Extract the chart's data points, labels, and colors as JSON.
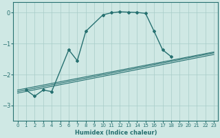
{
  "xlabel": "Humidex (Indice chaleur)",
  "ylabel": "",
  "bg_color": "#cfe8e4",
  "grid_color": "#a8ccc8",
  "line_color": "#267070",
  "xlim": [
    -0.5,
    23.5
  ],
  "ylim": [
    -3.5,
    0.35
  ],
  "xticks": [
    0,
    1,
    2,
    3,
    4,
    5,
    6,
    7,
    8,
    9,
    10,
    11,
    12,
    13,
    14,
    15,
    16,
    17,
    18,
    19,
    20,
    21,
    22,
    23
  ],
  "yticks": [
    0,
    -1,
    -2,
    -3
  ],
  "curve1_x": [
    1,
    2,
    3,
    4,
    6,
    7,
    8,
    10,
    11,
    12,
    13,
    14,
    15,
    16,
    17,
    18
  ],
  "curve1_y": [
    -2.5,
    -2.7,
    -2.5,
    -2.55,
    -1.2,
    -1.55,
    -0.6,
    -0.07,
    0.0,
    0.03,
    0.02,
    0.01,
    -0.02,
    -0.6,
    -1.2,
    -1.42
  ],
  "line1_x": [
    0,
    23
  ],
  "line1_y": [
    -2.5,
    -1.27
  ],
  "line2_x": [
    0,
    23
  ],
  "line2_y": [
    -2.55,
    -1.3
  ],
  "line3_x": [
    0,
    23
  ],
  "line3_y": [
    -2.6,
    -1.35
  ]
}
